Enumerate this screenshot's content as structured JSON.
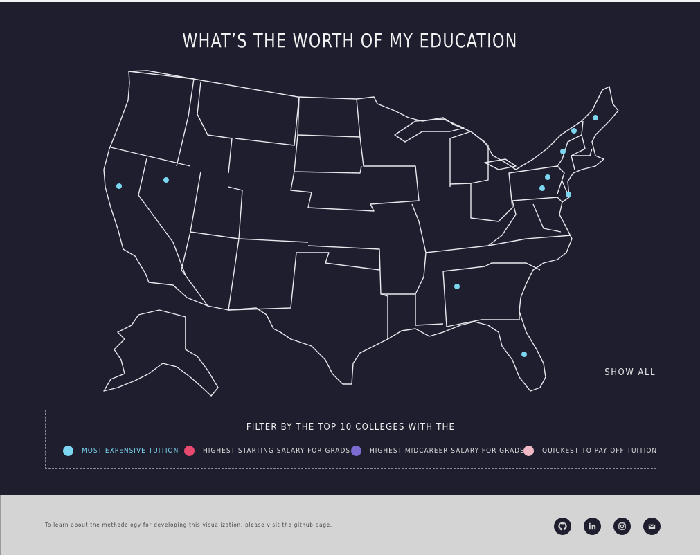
{
  "title": "WHAT’S THE WORTH OF MY EDUCATION",
  "show_all": "SHOW ALL",
  "filter": {
    "heading": "FILTER BY THE TOP 10 COLLEGES WITH THE",
    "options": [
      {
        "label": "MOST EXPENSIVE TUITION",
        "color": "#7cd6f0",
        "active": true
      },
      {
        "label": "HIGHEST STARTING SALARY FOR GRADS",
        "color": "#e84a6f",
        "active": false
      },
      {
        "label": "HIGHEST MIDCAREER SALARY FOR GRADS",
        "color": "#7b6bd0",
        "active": false
      },
      {
        "label": "QUICKEST TO PAY OFF TUITION",
        "color": "#f0b8c4",
        "active": false
      }
    ]
  },
  "footer": {
    "text": "To learn about the methodology for developing this visualization, please visit the github page.",
    "social": [
      "github-icon",
      "linkedin-icon",
      "instagram-icon",
      "email-icon"
    ]
  },
  "colors": {
    "background": "#1e1e2e",
    "map_stroke": "#e8e8ee",
    "marker": "#7cd6f0",
    "footer": "#d4d4d4"
  },
  "college_markers": 10
}
